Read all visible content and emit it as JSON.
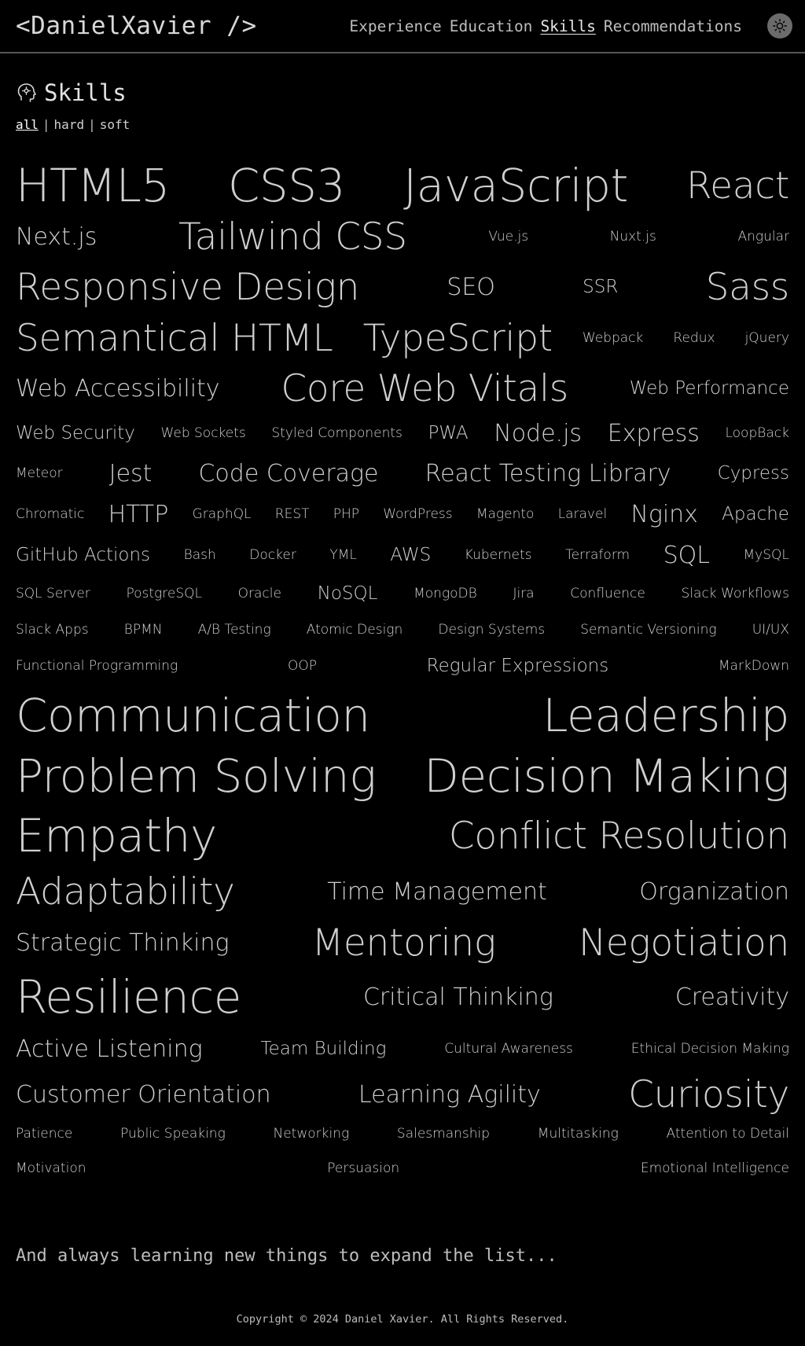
{
  "header": {
    "logo": "<DanielXavier />",
    "nav": [
      {
        "label": "Experience",
        "active": false
      },
      {
        "label": "Education",
        "active": false
      },
      {
        "label": "Skills",
        "active": true
      },
      {
        "label": "Recommendations",
        "active": false
      }
    ],
    "theme_icon": "sun-icon"
  },
  "section": {
    "title": "Skills",
    "icon": "head-gear-icon",
    "filters": [
      {
        "label": "all",
        "active": true
      },
      {
        "label": "hard",
        "active": false
      },
      {
        "label": "soft",
        "active": false
      }
    ]
  },
  "skill_rows": [
    [
      [
        "HTML5",
        "xl"
      ],
      [
        "CSS3",
        "xl"
      ],
      [
        "JavaScript",
        "xl"
      ],
      [
        "React",
        "l"
      ]
    ],
    [
      [
        "Next.js",
        "m"
      ],
      [
        "Tailwind CSS",
        "l"
      ],
      [
        "Vue.js",
        "xs"
      ],
      [
        "Nuxt.js",
        "xs"
      ],
      [
        "Angular",
        "xs"
      ]
    ],
    [
      [
        "Responsive Design",
        "l"
      ],
      [
        "SEO",
        "m"
      ],
      [
        "SSR",
        "s"
      ],
      [
        "Sass",
        "l"
      ]
    ],
    [
      [
        "Semantical HTML",
        "l"
      ],
      [
        "TypeScript",
        "l"
      ],
      [
        "Webpack",
        "xs"
      ],
      [
        "Redux",
        "xs"
      ],
      [
        "jQuery",
        "xs"
      ]
    ],
    [
      [
        "Web Accessibility",
        "m"
      ],
      [
        "Core Web Vitals",
        "l"
      ],
      [
        "Web Performance",
        "s"
      ]
    ],
    [
      [
        "Web Security",
        "s"
      ],
      [
        "Web Sockets",
        "xs"
      ],
      [
        "Styled Components",
        "xs"
      ],
      [
        "PWA",
        "s"
      ],
      [
        "Node.js",
        "m"
      ],
      [
        "Express",
        "m"
      ],
      [
        "LoopBack",
        "xs"
      ]
    ],
    [
      [
        "Meteor",
        "xs"
      ],
      [
        "Jest",
        "m"
      ],
      [
        "Code Coverage",
        "m"
      ],
      [
        "React Testing Library",
        "m"
      ],
      [
        "Cypress",
        "s"
      ]
    ],
    [
      [
        "Chromatic",
        "xs"
      ],
      [
        "HTTP",
        "m"
      ],
      [
        "GraphQL",
        "xs"
      ],
      [
        "REST",
        "xs"
      ],
      [
        "PHP",
        "xs"
      ],
      [
        "WordPress",
        "xs"
      ],
      [
        "Magento",
        "xs"
      ],
      [
        "Laravel",
        "xs"
      ],
      [
        "Nginx",
        "m"
      ],
      [
        "Apache",
        "s"
      ]
    ],
    [
      [
        "GitHub Actions",
        "s"
      ],
      [
        "Bash",
        "xs"
      ],
      [
        "Docker",
        "xs"
      ],
      [
        "YML",
        "xs"
      ],
      [
        "AWS",
        "s"
      ],
      [
        "Kubernets",
        "xs"
      ],
      [
        "Terraform",
        "xs"
      ],
      [
        "SQL",
        "m"
      ],
      [
        "MySQL",
        "xs"
      ]
    ],
    [
      [
        "SQL Server",
        "xs"
      ],
      [
        "PostgreSQL",
        "xs"
      ],
      [
        "Oracle",
        "xs"
      ],
      [
        "NoSQL",
        "s"
      ],
      [
        "MongoDB",
        "xs"
      ],
      [
        "Jira",
        "xs"
      ],
      [
        "Confluence",
        "xs"
      ],
      [
        "Slack Workflows",
        "xs"
      ]
    ],
    [
      [
        "Slack Apps",
        "xs"
      ],
      [
        "BPMN",
        "xs"
      ],
      [
        "A/B Testing",
        "xs"
      ],
      [
        "Atomic Design",
        "xs"
      ],
      [
        "Design Systems",
        "xs"
      ],
      [
        "Semantic Versioning",
        "xs"
      ],
      [
        "UI/UX",
        "xs"
      ]
    ],
    [
      [
        "Functional Programming",
        "xs"
      ],
      [
        "OOP",
        "xs"
      ],
      [
        "Regular Expressions",
        "s"
      ],
      [
        "MarkDown",
        "xs"
      ]
    ],
    [
      [
        "Communication",
        "xl"
      ],
      [
        "Leadership",
        "xl"
      ]
    ],
    [
      [
        "Problem Solving",
        "xl"
      ],
      [
        "Decision Making",
        "xl"
      ]
    ],
    [
      [
        "Empathy",
        "xl"
      ],
      [
        "Conflict Resolution",
        "l"
      ]
    ],
    [
      [
        "Adaptability",
        "l"
      ],
      [
        "Time Management",
        "m"
      ],
      [
        "Organization",
        "m"
      ]
    ],
    [
      [
        "Strategic Thinking",
        "m"
      ],
      [
        "Mentoring",
        "l"
      ],
      [
        "Negotiation",
        "l"
      ]
    ],
    [
      [
        "Resilience",
        "xl"
      ],
      [
        "Critical Thinking",
        "m"
      ],
      [
        "Creativity",
        "m"
      ]
    ],
    [
      [
        "Active Listening",
        "m"
      ],
      [
        "Team Building",
        "s"
      ],
      [
        "Cultural Awareness",
        "xs"
      ],
      [
        "Ethical Decision Making",
        "xs"
      ]
    ],
    [
      [
        "Customer Orientation",
        "m"
      ],
      [
        "Learning Agility",
        "m"
      ],
      [
        "Curiosity",
        "l"
      ]
    ],
    [
      [
        "Patience",
        "xs"
      ],
      [
        "Public Speaking",
        "xs"
      ],
      [
        "Networking",
        "xs"
      ],
      [
        "Salesmanship",
        "xs"
      ],
      [
        "Multitasking",
        "xs"
      ],
      [
        "Attention to Detail",
        "xs"
      ]
    ],
    [
      [
        "Motivation",
        "xs"
      ],
      [
        "Persuasion",
        "xs"
      ],
      [
        "Emotional Intelligence",
        "xs"
      ]
    ]
  ],
  "closing_line": "And always learning new things to expand the list...",
  "footer": "Copyright © 2024 Daniel Xavier. All Rights Reserved."
}
